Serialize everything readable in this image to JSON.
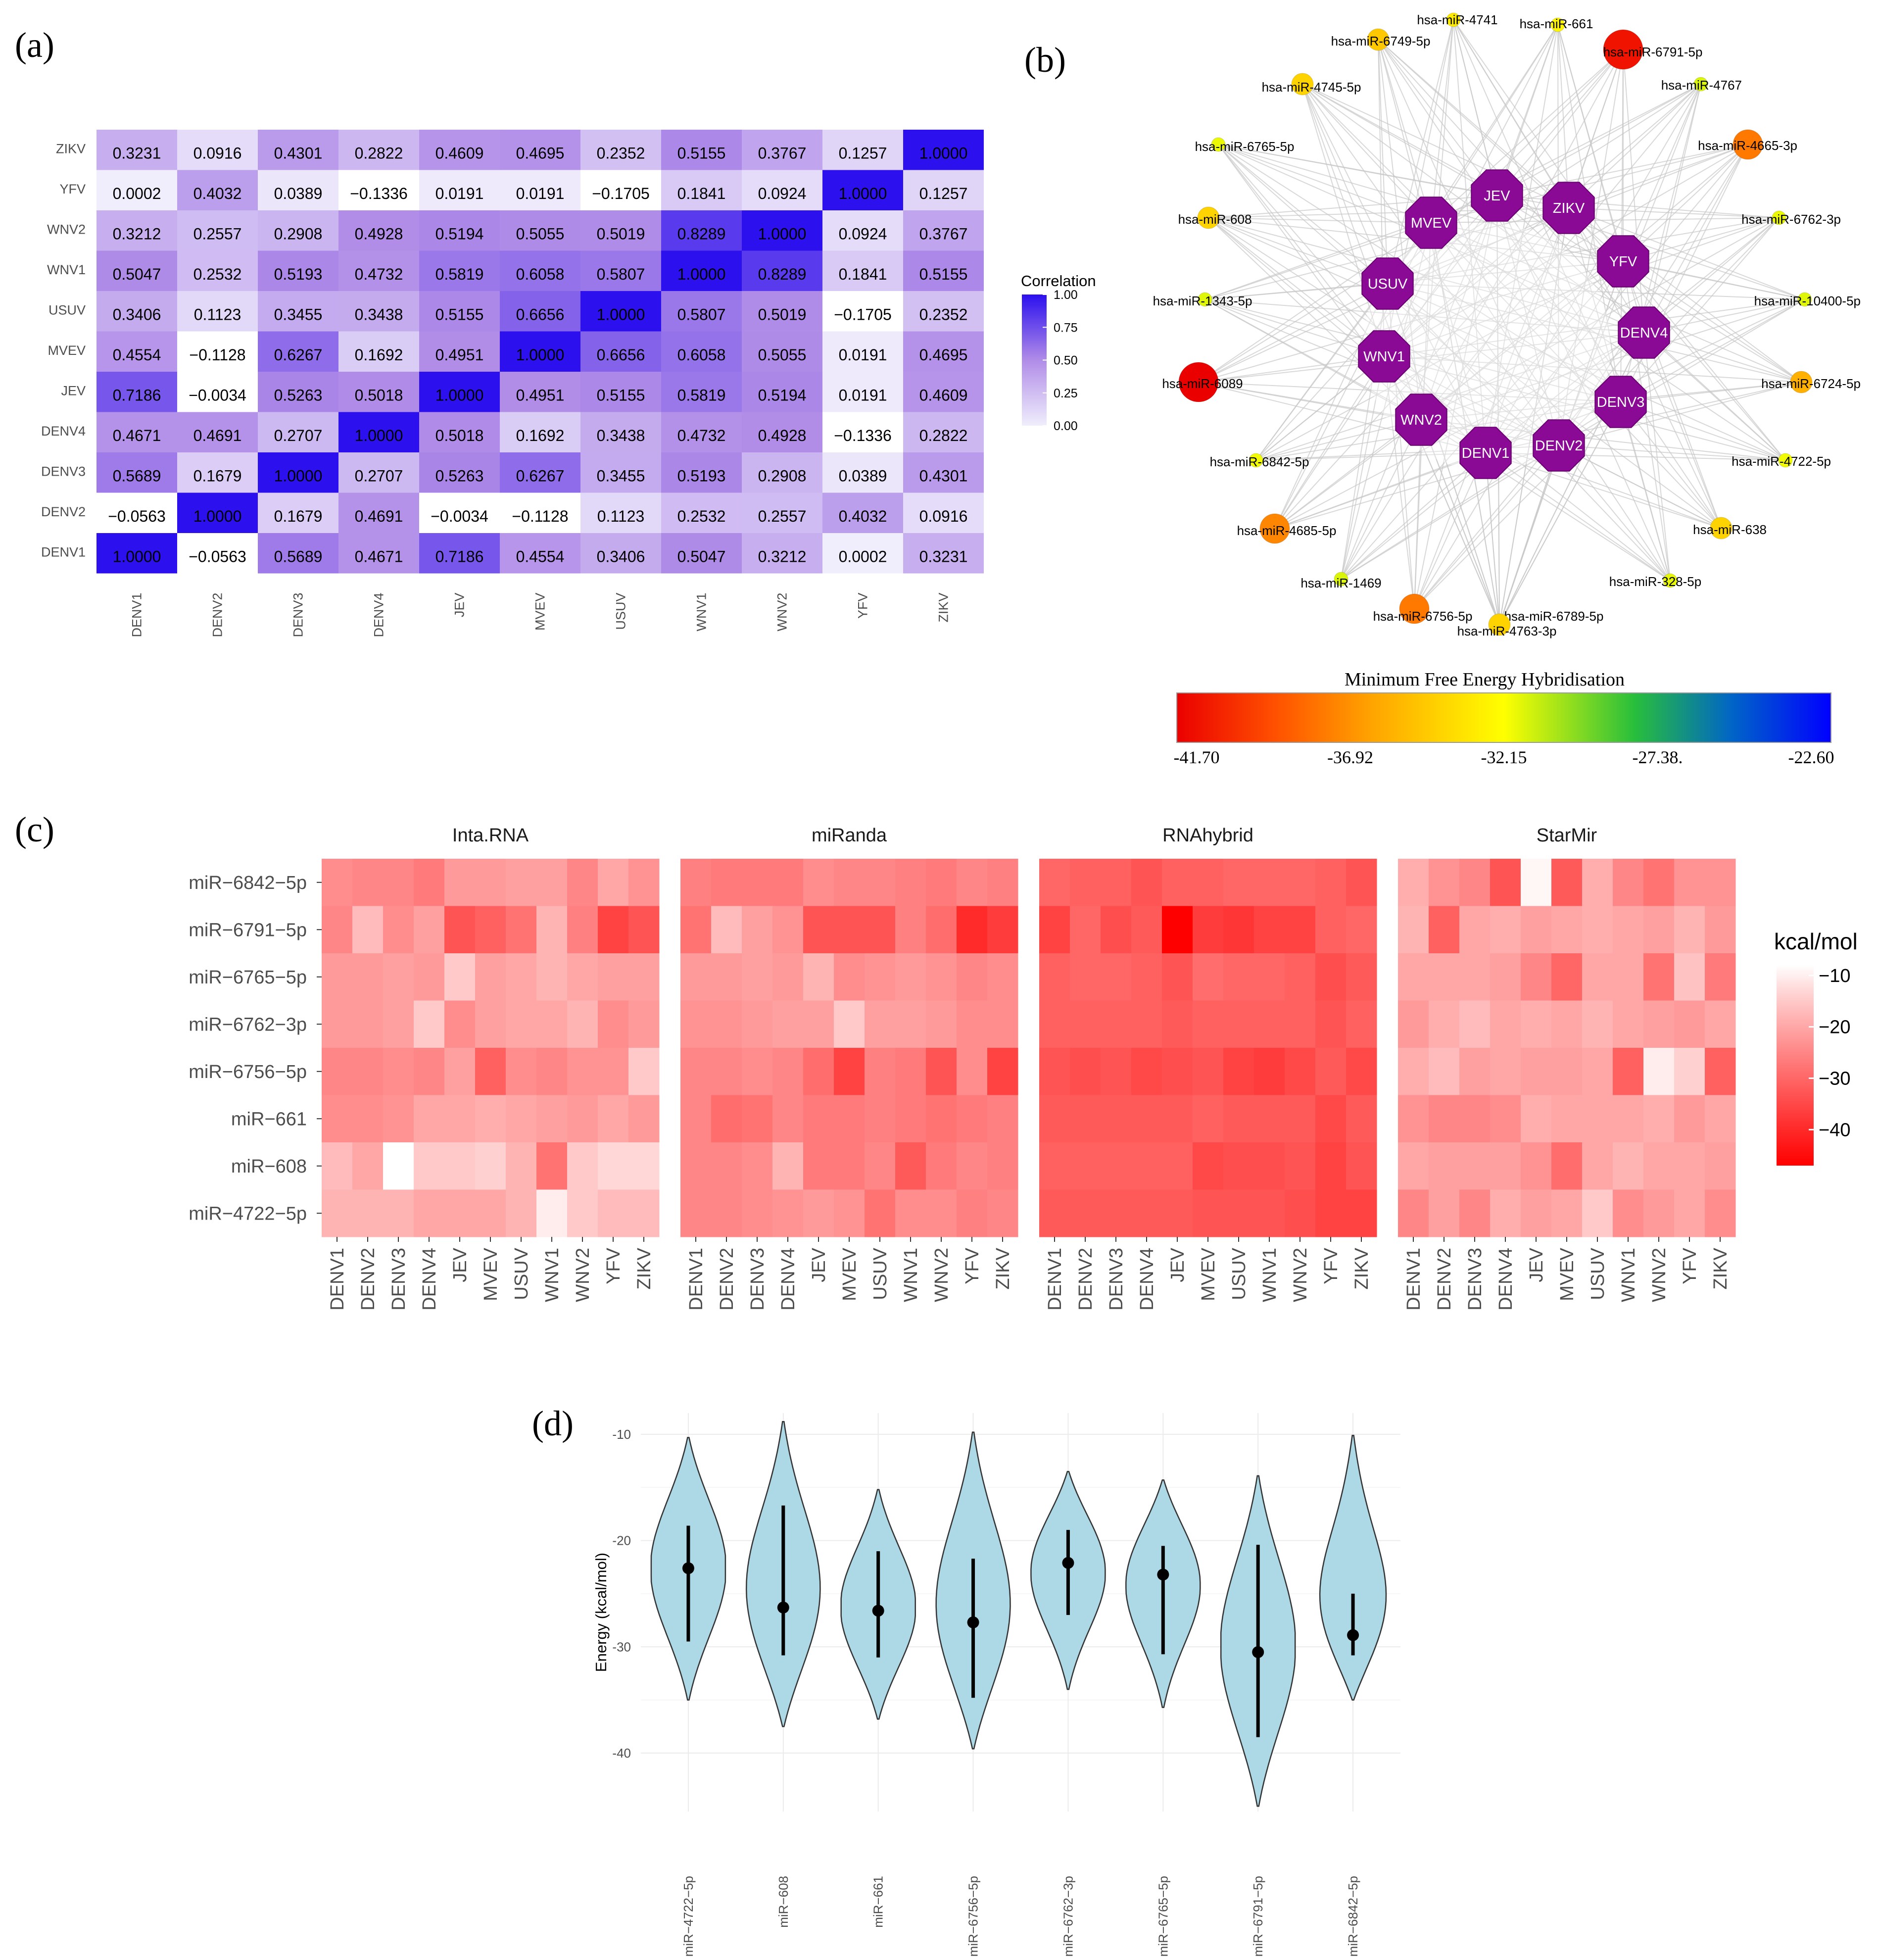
{
  "panel_labels": [
    "(a)",
    "(b)",
    "(c)",
    "(d)"
  ],
  "chart_data": [
    {
      "type": "heatmap",
      "panel": "(a)",
      "title": "",
      "legend_title": "Correlation",
      "legend_ticks": [
        "1.00",
        "0.75",
        "0.50",
        "0.25",
        "0.00"
      ],
      "legend_range": [
        0,
        1
      ],
      "rows": [
        "ZIKV",
        "YFV",
        "WNV2",
        "WNV1",
        "USUV",
        "MVEV",
        "JEV",
        "DENV4",
        "DENV3",
        "DENV2",
        "DENV1"
      ],
      "columns": [
        "DENV1",
        "DENV2",
        "DENV3",
        "DENV4",
        "JEV",
        "MVEV",
        "USUV",
        "WNV1",
        "WNV2",
        "YFV",
        "ZIKV"
      ],
      "cell_labels": [
        [
          "0.3231",
          "0.0916",
          "0.4301",
          "0.2822",
          "0.4609",
          "0.4695",
          "0.2352",
          "0.5155",
          "0.3767",
          "0.1257",
          "1.0000"
        ],
        [
          "0.0002",
          "0.4032",
          "0.0389",
          "−0.1336",
          "0.0191",
          "0.0191",
          "−0.1705",
          "0.1841",
          "0.0924",
          "1.0000",
          "0.1257"
        ],
        [
          "0.3212",
          "0.2557",
          "0.2908",
          "0.4928",
          "0.5194",
          "0.5055",
          "0.5019",
          "0.8289",
          "1.0000",
          "0.0924",
          "0.3767"
        ],
        [
          "0.5047",
          "0.2532",
          "0.5193",
          "0.4732",
          "0.5819",
          "0.6058",
          "0.5807",
          "1.0000",
          "0.8289",
          "0.1841",
          "0.5155"
        ],
        [
          "0.3406",
          "0.1123",
          "0.3455",
          "0.3438",
          "0.5155",
          "0.6656",
          "1.0000",
          "0.5807",
          "0.5019",
          "−0.1705",
          "0.2352"
        ],
        [
          "0.4554",
          "−0.1128",
          "0.6267",
          "0.1692",
          "0.4951",
          "1.0000",
          "0.6656",
          "0.6058",
          "0.5055",
          "0.0191",
          "0.4695"
        ],
        [
          "0.7186",
          "−0.0034",
          "0.5263",
          "0.5018",
          "1.0000",
          "0.4951",
          "0.5155",
          "0.5819",
          "0.5194",
          "0.0191",
          "0.4609"
        ],
        [
          "0.4671",
          "0.4691",
          "0.2707",
          "1.0000",
          "0.5018",
          "0.1692",
          "0.3438",
          "0.4732",
          "0.4928",
          "−0.1336",
          "0.2822"
        ],
        [
          "0.5689",
          "0.1679",
          "1.0000",
          "0.2707",
          "0.5263",
          "0.6267",
          "0.3455",
          "0.5193",
          "0.2908",
          "0.0389",
          "0.4301"
        ],
        [
          "−0.0563",
          "1.0000",
          "0.1679",
          "0.4691",
          "−0.0034",
          "−0.1128",
          "0.1123",
          "0.2532",
          "0.2557",
          "0.4032",
          "0.0916"
        ],
        [
          "1.0000",
          "−0.0563",
          "0.5689",
          "0.4671",
          "0.7186",
          "0.4554",
          "0.3406",
          "0.5047",
          "0.3212",
          "0.0002",
          "0.3231"
        ]
      ]
    },
    {
      "type": "network",
      "panel": "(b)",
      "virus_nodes": [
        "JEV",
        "ZIKV",
        "YFV",
        "DENV4",
        "DENV3",
        "DENV2",
        "DENV1",
        "WNV2",
        "WNV1",
        "USUV",
        "MVEV"
      ],
      "mirna_nodes": [
        {
          "label": "hsa-miR-4741",
          "mfe": -33.0
        },
        {
          "label": "hsa-miR-661",
          "mfe": -32.5
        },
        {
          "label": "hsa-miR-6791-5p",
          "mfe": -41.0
        },
        {
          "label": "hsa-miR-4767",
          "mfe": -31.5
        },
        {
          "label": "hsa-miR-4665-3p",
          "mfe": -37.5
        },
        {
          "label": "hsa-miR-6762-3p",
          "mfe": -31.8
        },
        {
          "label": "hsa-miR-10400-5p",
          "mfe": -31.6
        },
        {
          "label": "hsa-miR-6724-5p",
          "mfe": -35.5
        },
        {
          "label": "hsa-miR-4722-5p",
          "mfe": -31.9
        },
        {
          "label": "hsa-miR-638",
          "mfe": -34.0
        },
        {
          "label": "hsa-miR-328-5p",
          "mfe": -31.7
        },
        {
          "label": "hsa-miR-6789-5p",
          "mfe": -31.8
        },
        {
          "label": "hsa-miR-4763-3p",
          "mfe": -34.0
        },
        {
          "label": "hsa-miR-6756-5p",
          "mfe": -37.5
        },
        {
          "label": "hsa-miR-1469",
          "mfe": -31.5
        },
        {
          "label": "hsa-miR-4685-5p",
          "mfe": -37.0
        },
        {
          "label": "hsa-miR-6842-5p",
          "mfe": -31.9
        },
        {
          "label": "hsa-miR-6089",
          "mfe": -41.7
        },
        {
          "label": "hsa-miR-1343-5p",
          "mfe": -31.6
        },
        {
          "label": "hsa-miR-608",
          "mfe": -34.0
        },
        {
          "label": "hsa-miR-6765-5p",
          "mfe": -31.8
        },
        {
          "label": "hsa-miR-4745-5p",
          "mfe": -34.0
        },
        {
          "label": "hsa-miR-6749-5p",
          "mfe": -34.5
        }
      ],
      "colorbar_title": "Minimum Free Energy Hybridisation",
      "colorbar_ticks": [
        "-41.70",
        "-36.92",
        "-32.15",
        "-27.38.",
        "-22.60"
      ],
      "colorbar_range": [
        -41.7,
        -22.6
      ]
    },
    {
      "type": "heatmap",
      "panel": "(c)",
      "facets": [
        "Inta.RNA",
        "miRanda",
        "RNAhybrid",
        "StarMir"
      ],
      "rows": [
        "miR−6842−5p",
        "miR−6791−5p",
        "miR−6765−5p",
        "miR−6762−3p",
        "miR−6756−5p",
        "miR−661",
        "miR−608",
        "miR−4722−5p"
      ],
      "columns": [
        "DENV1",
        "DENV2",
        "DENV3",
        "DENV4",
        "JEV",
        "MVEV",
        "USUV",
        "WNV1",
        "WNV2",
        "YFV",
        "ZIKV"
      ],
      "legend_title": "kcal/mol",
      "legend_ticks": [
        "−10",
        "−20",
        "−30",
        "−40"
      ],
      "legend_range": [
        -47,
        -8
      ],
      "values": [
        [
          [
            -24,
            -25,
            -25,
            -27,
            -22,
            -22,
            -21,
            -21,
            -25,
            -20,
            -23
          ],
          [
            -25,
            -17,
            -24,
            -21,
            -33,
            -31,
            -28,
            -18,
            -26,
            -36,
            -33
          ],
          [
            -22,
            -22,
            -21,
            -22,
            -15,
            -21,
            -20,
            -18,
            -20,
            -21,
            -21
          ],
          [
            -22,
            -22,
            -21,
            -15,
            -24,
            -21,
            -20,
            -20,
            -18,
            -24,
            -22
          ],
          [
            -25,
            -25,
            -24,
            -25,
            -21,
            -31,
            -24,
            -25,
            -23,
            -23,
            -15
          ],
          [
            -24,
            -24,
            -23,
            -20,
            -20,
            -19,
            -20,
            -21,
            -22,
            -20,
            -22
          ],
          [
            -17,
            -20,
            -8,
            -15,
            -15,
            -14,
            -18,
            -28,
            -15,
            -13,
            -13
          ],
          [
            -18,
            -18,
            -18,
            -20,
            -20,
            -20,
            -18,
            -10,
            -15,
            -17,
            -17
          ]
        ],
        [
          [
            -26,
            -27,
            -27,
            -27,
            -24,
            -25,
            -25,
            -26,
            -27,
            -25,
            -26
          ],
          [
            -28,
            -17,
            -21,
            -23,
            -33,
            -33,
            -33,
            -26,
            -29,
            -40,
            -37
          ],
          [
            -22,
            -22,
            -21,
            -22,
            -18,
            -24,
            -23,
            -22,
            -23,
            -25,
            -24
          ],
          [
            -23,
            -23,
            -22,
            -21,
            -21,
            -15,
            -21,
            -21,
            -22,
            -24,
            -24
          ],
          [
            -25,
            -25,
            -24,
            -25,
            -29,
            -36,
            -26,
            -27,
            -33,
            -24,
            -36
          ],
          [
            -25,
            -29,
            -28,
            -25,
            -27,
            -27,
            -26,
            -27,
            -28,
            -27,
            -26
          ],
          [
            -25,
            -25,
            -24,
            -18,
            -27,
            -27,
            -25,
            -32,
            -27,
            -25,
            -26
          ],
          [
            -25,
            -25,
            -24,
            -23,
            -22,
            -23,
            -28,
            -24,
            -24,
            -26,
            -25
          ]
        ],
        [
          [
            -30,
            -31,
            -31,
            -33,
            -31,
            -31,
            -30,
            -30,
            -30,
            -31,
            -33
          ],
          [
            -36,
            -30,
            -34,
            -32,
            -47,
            -37,
            -38,
            -36,
            -36,
            -31,
            -30
          ],
          [
            -31,
            -30,
            -30,
            -31,
            -33,
            -29,
            -30,
            -30,
            -31,
            -34,
            -32
          ],
          [
            -31,
            -31,
            -31,
            -31,
            -32,
            -31,
            -31,
            -31,
            -31,
            -33,
            -31
          ],
          [
            -33,
            -34,
            -33,
            -35,
            -34,
            -33,
            -36,
            -37,
            -35,
            -32,
            -35
          ],
          [
            -32,
            -32,
            -32,
            -32,
            -32,
            -31,
            -32,
            -32,
            -32,
            -35,
            -32
          ],
          [
            -31,
            -31,
            -31,
            -31,
            -31,
            -35,
            -34,
            -34,
            -33,
            -36,
            -33
          ],
          [
            -32,
            -32,
            -32,
            -32,
            -32,
            -33,
            -33,
            -33,
            -34,
            -36,
            -36
          ]
        ],
        [
          [
            -19,
            -23,
            -25,
            -33,
            -9,
            -32,
            -19,
            -25,
            -28,
            -23,
            -23
          ],
          [
            -18,
            -31,
            -20,
            -19,
            -21,
            -20,
            -19,
            -20,
            -21,
            -18,
            -22
          ],
          [
            -20,
            -20,
            -20,
            -21,
            -25,
            -30,
            -20,
            -20,
            -28,
            -16,
            -27
          ],
          [
            -22,
            -19,
            -17,
            -20,
            -19,
            -20,
            -18,
            -20,
            -21,
            -22,
            -20
          ],
          [
            -19,
            -17,
            -21,
            -20,
            -21,
            -21,
            -20,
            -31,
            -10,
            -14,
            -31
          ],
          [
            -23,
            -25,
            -25,
            -24,
            -19,
            -20,
            -20,
            -20,
            -19,
            -22,
            -20
          ],
          [
            -20,
            -21,
            -21,
            -21,
            -23,
            -29,
            -20,
            -18,
            -20,
            -20,
            -21
          ],
          [
            -25,
            -21,
            -25,
            -19,
            -21,
            -20,
            -15,
            -24,
            -22,
            -20,
            -24
          ]
        ]
      ]
    },
    {
      "type": "violin",
      "panel": "(d)",
      "ylabel": "Energy (kcal/mol)",
      "ylim": [
        -45.5,
        -8
      ],
      "yticks": [
        "-10",
        "-20",
        "-30",
        "-40"
      ],
      "ytick_values": [
        -10,
        -20,
        -30,
        -40
      ],
      "categories": [
        "miR−4722−5p",
        "miR−608",
        "miR−661",
        "miR−6756−5p",
        "miR−6762−3p",
        "miR−6765−5p",
        "miR−6791−5p",
        "miR−6842−5p"
      ],
      "means": [
        -22.6,
        -26.3,
        -26.6,
        -27.7,
        -22.1,
        -23.2,
        -30.5,
        -28.9
      ],
      "sd_low": [
        -29.5,
        -30.8,
        -31.0,
        -34.8,
        -27.0,
        -30.7,
        -38.5,
        -30.8
      ],
      "sd_high": [
        -18.6,
        -16.7,
        -21.0,
        -21.7,
        -19.0,
        -20.5,
        -20.4,
        -25.0
      ],
      "ranges": [
        [
          -35.0,
          -10.3
        ],
        [
          -37.5,
          -8.8
        ],
        [
          -36.8,
          -15.2
        ],
        [
          -39.6,
          -9.8
        ],
        [
          -34.0,
          -13.5
        ],
        [
          -35.7,
          -14.3
        ],
        [
          -45.0,
          -13.9
        ],
        [
          -35.0,
          -10.1
        ]
      ],
      "violin_color": "#ADD8E6"
    }
  ]
}
